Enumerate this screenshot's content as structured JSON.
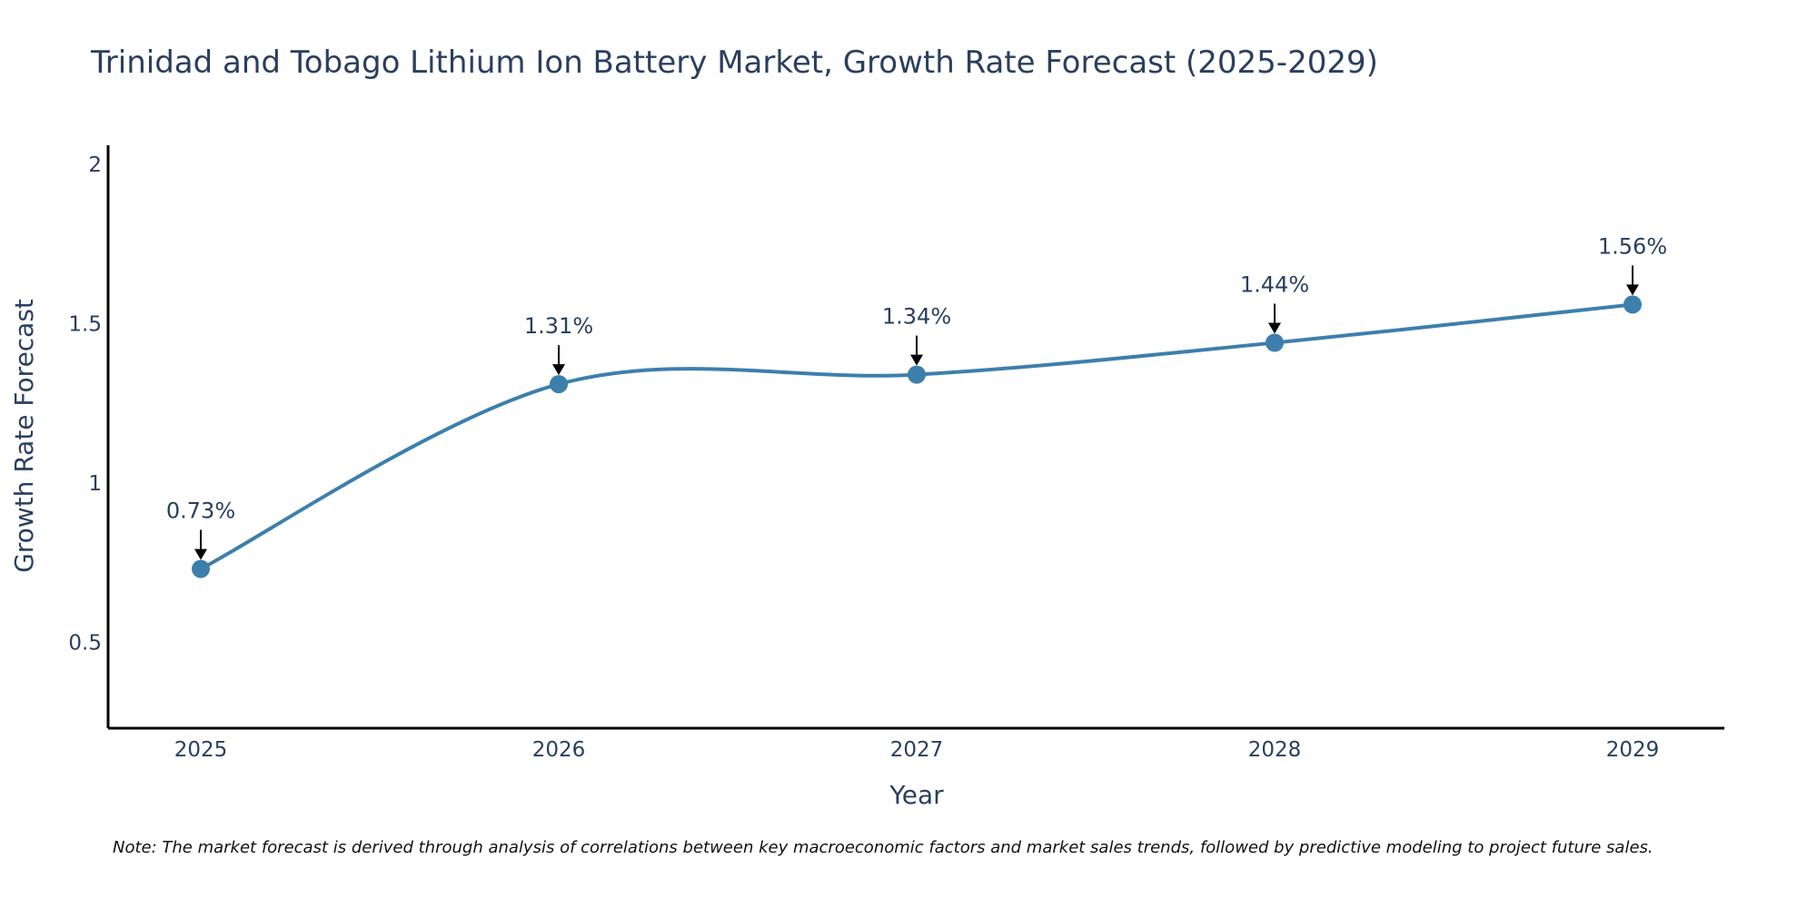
{
  "chart_data": {
    "type": "line",
    "title": "Trinidad and Tobago Lithium Ion Battery Market, Growth Rate Forecast (2025-2029)",
    "xlabel": "Year",
    "ylabel": "Growth Rate Forecast",
    "categories": [
      "2025",
      "2026",
      "2027",
      "2028",
      "2029"
    ],
    "series": [
      {
        "name": "Growth Rate Forecast",
        "values": [
          0.73,
          1.31,
          1.34,
          1.44,
          1.56
        ],
        "labels": [
          "0.73%",
          "1.31%",
          "1.34%",
          "1.44%",
          "1.56%"
        ]
      }
    ],
    "ylim": [
      0.23,
      2.06
    ],
    "yticks": [
      0.5,
      1,
      1.5,
      2
    ],
    "ytick_labels": [
      "0.5",
      "1",
      "1.5",
      "2"
    ],
    "grid": false,
    "line_color": "#3d7fac",
    "marker_color": "#3d7fac",
    "note": "Note: The market forecast is derived through analysis of correlations between key macroeconomic factors and market sales trends, followed by predictive modeling to project future sales."
  }
}
